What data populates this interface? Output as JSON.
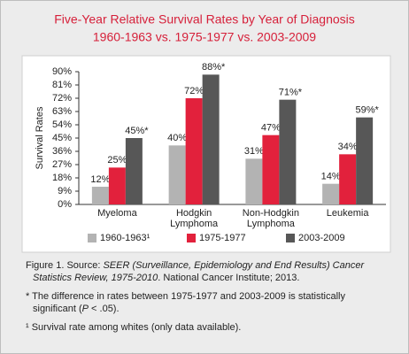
{
  "chart_data": {
    "type": "bar",
    "title": "Five-Year Relative Survival Rates by Year of Diagnosis",
    "subtitle": "1960-1963 vs. 1975-1977 vs. 2003-2009",
    "y_label": "Survival Rates",
    "categories": [
      "Myeloma",
      "Hodgkin Lymphoma",
      "Non-Hodgkin Lymphoma",
      "Leukemia"
    ],
    "series": [
      {
        "name": "1960-1963¹",
        "color": "#b3b3b3",
        "values": [
          12,
          40,
          31,
          14
        ],
        "value_labels": [
          "12%",
          "40%",
          "31%",
          "14%"
        ]
      },
      {
        "name": "1975-1977",
        "color": "#e2213c",
        "values": [
          25,
          72,
          47,
          34
        ],
        "value_labels": [
          "25%",
          "72%",
          "47%",
          "34%"
        ]
      },
      {
        "name": "2003-2009",
        "color": "#575757",
        "values": [
          45,
          88,
          71,
          59
        ],
        "value_labels": [
          "45%*",
          "88%*",
          "71%*",
          "59%*"
        ]
      }
    ],
    "ylim": [
      0,
      90
    ],
    "yticks": [
      {
        "value": 0,
        "label": "0%"
      },
      {
        "value": 9,
        "label": "9%"
      },
      {
        "value": 18,
        "label": "18%"
      },
      {
        "value": 27,
        "label": "27%"
      },
      {
        "value": 36,
        "label": "36%"
      },
      {
        "value": 45,
        "label": "45%"
      },
      {
        "value": 54,
        "label": "54%"
      },
      {
        "value": 63,
        "label": "63%"
      },
      {
        "value": 72,
        "label": "72%"
      },
      {
        "value": 81,
        "label": "81%"
      },
      {
        "value": 90,
        "label": "90%"
      }
    ],
    "grid": false,
    "legend": "bottom"
  },
  "caption": {
    "figure": [
      "Figure 1. Source: ",
      "SEER (Surveillance, Epidemiology and End Results) Cancer Statistics Review, 1975-2010",
      ". National Cancer Institute; 2013."
    ],
    "significance": [
      "* The difference in rates between 1975-1977 and 2003-2009 is statistically significant (",
      "P",
      " < .05)."
    ],
    "whites": "¹ Survival rate among whites (only data available)."
  }
}
